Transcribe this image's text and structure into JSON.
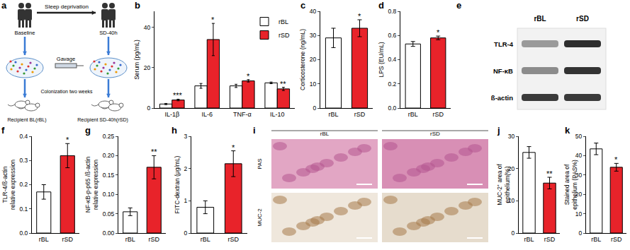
{
  "diagram": {
    "panel": "a",
    "top_label": "Sleep deprivation",
    "left_label": "Baseline",
    "right_label": "SD-40h",
    "middle_label": "Gavage",
    "bottom_label": "Colonization two weeks",
    "left_recipient": "Recipient BL(rBL)",
    "right_recipient": "Recipient SD-40h(rSD)"
  },
  "blot": {
    "panel": "e",
    "columns": [
      "rBL",
      "rSD"
    ],
    "rows": [
      "TLR-4",
      "NF-κB",
      "ß-actin"
    ]
  },
  "histology": {
    "panel": "i",
    "columns": [
      "rBL",
      "rSD"
    ],
    "rows": [
      "PAS",
      "MUC-2"
    ]
  },
  "chart_data": [
    {
      "panel": "b",
      "type": "bar",
      "categories": [
        "IL-1β",
        "IL-6",
        "TNF-α",
        "IL-10"
      ],
      "ylabel": [
        "Serum (pg/mL)"
      ],
      "ylim": [
        0,
        48
      ],
      "yticks": [
        0,
        20,
        40
      ],
      "legend": "upper right",
      "series": [
        {
          "name": "rBL",
          "color": "#ffffff",
          "values": [
            2,
            11,
            11,
            12.5
          ],
          "errors": [
            0.3,
            1.2,
            0.8,
            0.4
          ]
        },
        {
          "name": "rSD",
          "color": "#e8232a",
          "values": [
            4,
            34,
            13.5,
            9.5
          ],
          "errors": [
            0.4,
            8,
            0.6,
            0.8
          ],
          "significance": [
            "***",
            "*",
            "*",
            "**"
          ]
        }
      ]
    },
    {
      "panel": "c",
      "type": "bar",
      "categories": [
        "rBL",
        "rSD"
      ],
      "ylabel": [
        "Corticosterone (ng/mL)"
      ],
      "ylim": [
        0,
        40
      ],
      "yticks": [
        0,
        10,
        20,
        30,
        40
      ],
      "colors": [
        "#ffffff",
        "#e8232a"
      ],
      "values": [
        29,
        33
      ],
      "errors": [
        4,
        3.5
      ],
      "significance": [
        null,
        "*"
      ]
    },
    {
      "panel": "d",
      "type": "bar",
      "categories": [
        "rBL",
        "rSD"
      ],
      "ylabel": [
        "LPS (EU/mL)"
      ],
      "ylim": [
        0,
        0.8
      ],
      "yticks": [
        {
          "value": 0,
          "label": "0.0"
        },
        {
          "value": 0.2,
          "label": "0.2"
        },
        {
          "value": 0.4,
          "label": "0.4"
        },
        {
          "value": 0.6,
          "label": "0.6"
        },
        {
          "value": 0.8,
          "label": "0.8"
        }
      ],
      "colors": [
        "#ffffff",
        "#e8232a"
      ],
      "values": [
        0.53,
        0.58
      ],
      "errors": [
        0.02,
        0.015
      ],
      "significance": [
        null,
        "*"
      ]
    },
    {
      "panel": "f",
      "type": "bar",
      "categories": [
        "rBL",
        "rSD"
      ],
      "ylabel": [
        "TLR-4/ß-actin",
        "relative expression"
      ],
      "ylim": [
        0,
        0.4
      ],
      "yticks": [
        {
          "value": 0,
          "label": "0.0"
        },
        {
          "value": 0.1,
          "label": "0.1"
        },
        {
          "value": 0.2,
          "label": "0.2"
        },
        {
          "value": 0.3,
          "label": "0.3"
        },
        {
          "value": 0.4,
          "label": "0.4"
        }
      ],
      "colors": [
        "#ffffff",
        "#e8232a"
      ],
      "values": [
        0.17,
        0.32
      ],
      "errors": [
        0.03,
        0.05
      ],
      "significance": [
        null,
        "*"
      ]
    },
    {
      "panel": "g",
      "type": "bar",
      "categories": [
        "rBL",
        "rSD"
      ],
      "ylabel": [
        "NF-κB-p-p65 /ß-actin",
        "relative expression"
      ],
      "ylim": [
        0,
        0.25
      ],
      "yticks": [
        {
          "value": 0,
          "label": "0.00"
        },
        {
          "value": 0.05,
          "label": "0.05"
        },
        {
          "value": 0.1,
          "label": "0.10"
        },
        {
          "value": 0.15,
          "label": "0.15"
        },
        {
          "value": 0.2,
          "label": "0.20"
        },
        {
          "value": 0.25,
          "label": "0.25"
        }
      ],
      "colors": [
        "#ffffff",
        "#e8232a"
      ],
      "values": [
        0.055,
        0.17
      ],
      "errors": [
        0.01,
        0.03
      ],
      "significance": [
        null,
        "**"
      ]
    },
    {
      "panel": "h",
      "type": "bar",
      "categories": [
        "rBL",
        "rSD"
      ],
      "ylabel": [
        "FITC-dextran (μg/mL)"
      ],
      "ylim": [
        0,
        3
      ],
      "yticks": [
        0,
        1,
        2,
        3
      ],
      "colors": [
        "#ffffff",
        "#e8232a"
      ],
      "values": [
        0.8,
        2.15
      ],
      "errors": [
        0.2,
        0.4
      ],
      "significance": [
        null,
        "*"
      ]
    },
    {
      "panel": "j",
      "type": "bar",
      "categories": [
        "rBL",
        "rSD"
      ],
      "ylabel": [
        "MUC-2⁺ area of",
        "epithelium(%)"
      ],
      "ylim": [
        0,
        30
      ],
      "yticks": [
        0,
        10,
        20,
        30
      ],
      "colors": [
        "#ffffff",
        "#e8232a"
      ],
      "values": [
        25,
        15.5
      ],
      "errors": [
        1.8,
        1.8
      ],
      "significance": [
        null,
        "**"
      ]
    },
    {
      "panel": "k",
      "type": "bar",
      "categories": [
        "rBL",
        "rSD"
      ],
      "ylabel": [
        "Stained area of",
        "epithelium (PAS%)"
      ],
      "ylim": [
        0,
        50
      ],
      "yticks": [
        0,
        10,
        20,
        30,
        40,
        50
      ],
      "colors": [
        "#ffffff",
        "#e8232a"
      ],
      "values": [
        43.5,
        34
      ],
      "errors": [
        3,
        2
      ],
      "significance": [
        null,
        "*"
      ]
    }
  ]
}
